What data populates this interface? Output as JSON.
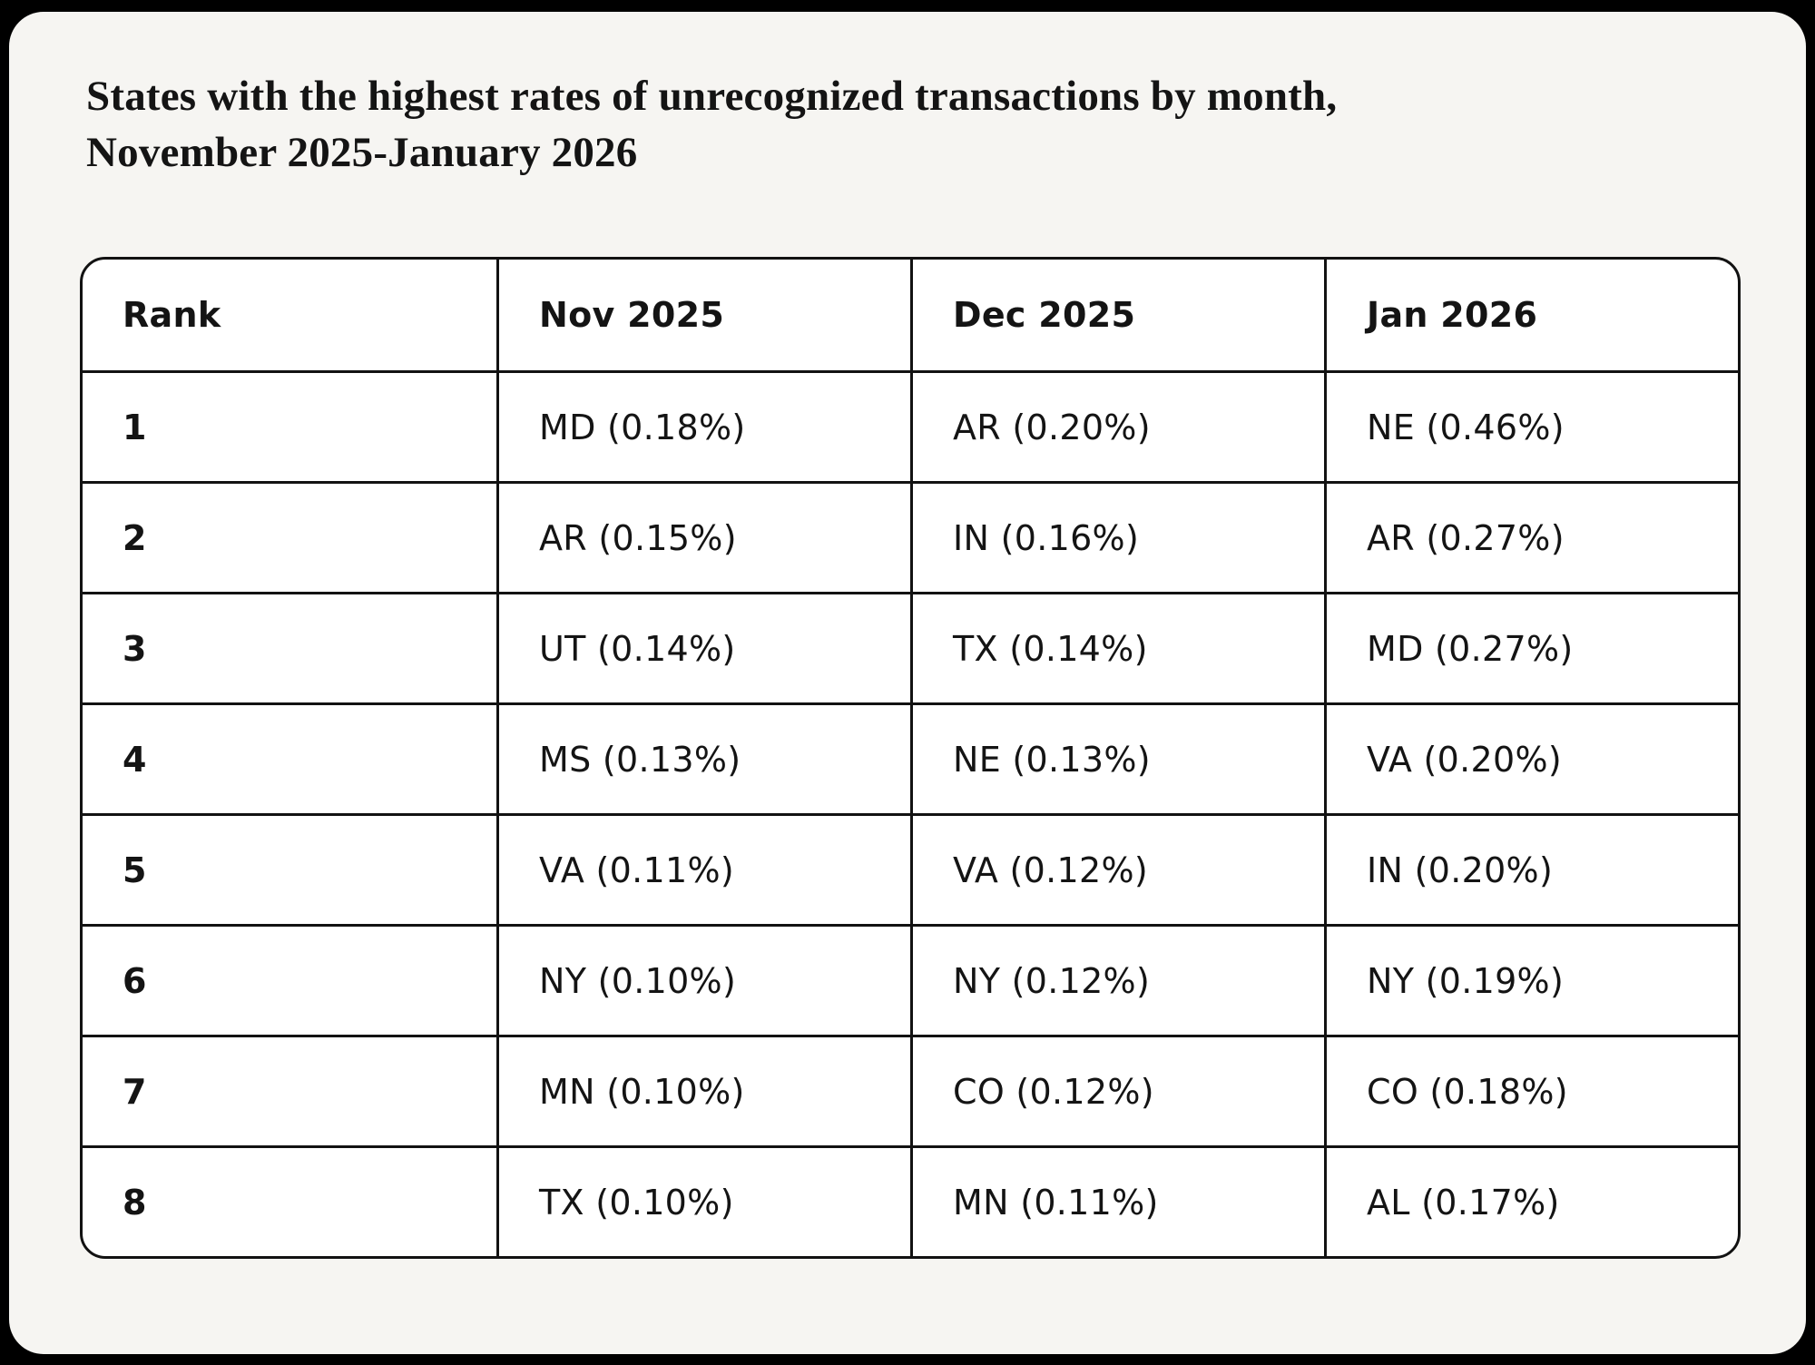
{
  "colors": {
    "frame": "#000000",
    "card": "#f6f5f2",
    "table_background": "#ffffff",
    "border": "#121212",
    "text": "#141414"
  },
  "title": "States with the highest rates of unrecognized transactions by month, November 2025-January 2026",
  "chart_data": {
    "type": "table",
    "title": "States with the highest rates of unrecognized transactions by month, November 2025-January 2026",
    "columns": [
      "Rank",
      "Nov 2025",
      "Dec 2025",
      "Jan 2026"
    ],
    "rows": [
      [
        "1",
        "MD (0.18%)",
        "AR (0.20%)",
        "NE (0.46%)"
      ],
      [
        "2",
        "AR (0.15%)",
        "IN (0.16%)",
        "AR (0.27%)"
      ],
      [
        "3",
        "UT (0.14%)",
        "TX (0.14%)",
        "MD (0.27%)"
      ],
      [
        "4",
        "MS (0.13%)",
        "NE (0.13%)",
        "VA (0.20%)"
      ],
      [
        "5",
        "VA (0.11%)",
        "VA (0.12%)",
        "IN (0.20%)"
      ],
      [
        "6",
        "NY (0.10%)",
        "NY (0.12%)",
        "NY (0.19%)"
      ],
      [
        "7",
        "MN (0.10%)",
        "CO (0.12%)",
        "CO (0.18%)"
      ],
      [
        "8",
        "TX (0.10%)",
        "MN (0.11%)",
        "AL (0.17%)"
      ]
    ]
  }
}
